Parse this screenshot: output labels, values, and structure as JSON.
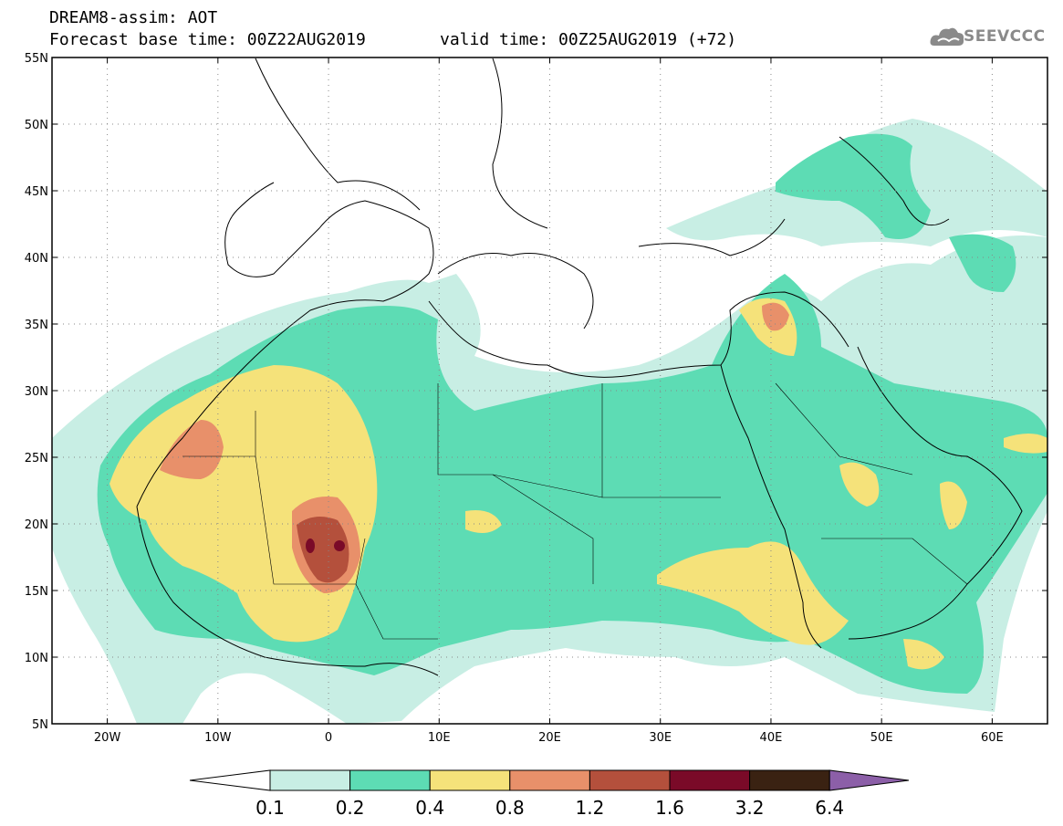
{
  "header": {
    "line1": "DREAM8-assim: AOT",
    "line2": "Forecast base time: 00Z22AUG2019",
    "valid": "valid time: 00Z25AUG2019 (+72)"
  },
  "logo": {
    "text": "SEEVCCC",
    "icon": "cloud-icon"
  },
  "map": {
    "lat_labels": [
      "55N",
      "50N",
      "45N",
      "40N",
      "35N",
      "30N",
      "25N",
      "20N",
      "15N",
      "10N",
      "5N"
    ],
    "lat_values": [
      55,
      50,
      45,
      40,
      35,
      30,
      25,
      20,
      15,
      10,
      5
    ],
    "lon_labels": [
      "20W",
      "10W",
      "0",
      "10E",
      "20E",
      "30E",
      "40E",
      "50E",
      "60E"
    ],
    "lon_values": [
      -20,
      -10,
      0,
      10,
      20,
      30,
      40,
      50,
      60
    ],
    "lon_range": [
      -25,
      65
    ],
    "lat_range": [
      5,
      55
    ]
  },
  "colorbar": {
    "labels": [
      "0.1",
      "0.2",
      "0.4",
      "0.8",
      "1.2",
      "1.6",
      "3.2",
      "6.4"
    ],
    "colors": [
      "#ffffff",
      "#c8eee4",
      "#5ddcb4",
      "#f5e27a",
      "#e8906a",
      "#b4503c",
      "#7a0a28",
      "#3a2212",
      "#8c5fa8"
    ]
  }
}
